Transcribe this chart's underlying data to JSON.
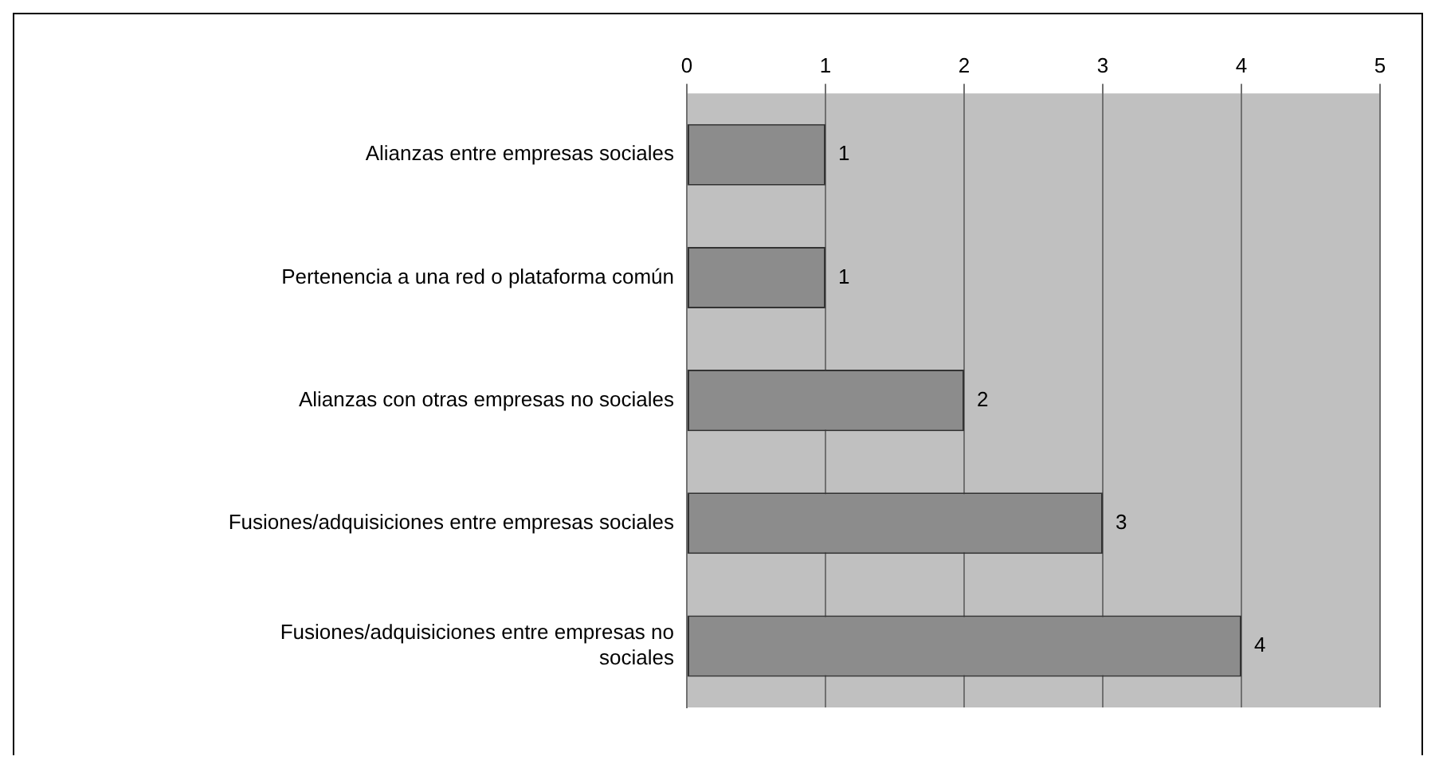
{
  "chart_data": {
    "type": "bar",
    "orientation": "horizontal",
    "categories": [
      "Alianzas entre empresas sociales",
      "Pertenencia a una red o plataforma común",
      "Alianzas con otras empresas no sociales",
      "Fusiones/adquisiciones entre empresas sociales",
      "Fusiones/adquisiciones entre empresas no sociales"
    ],
    "values": [
      1,
      1,
      2,
      3,
      4
    ],
    "color": "#8c8c8c",
    "xlim": [
      0,
      5
    ],
    "xticks": [
      0,
      1,
      2,
      3,
      4,
      5
    ],
    "grid": "x",
    "legend": false,
    "data_labels": true
  }
}
